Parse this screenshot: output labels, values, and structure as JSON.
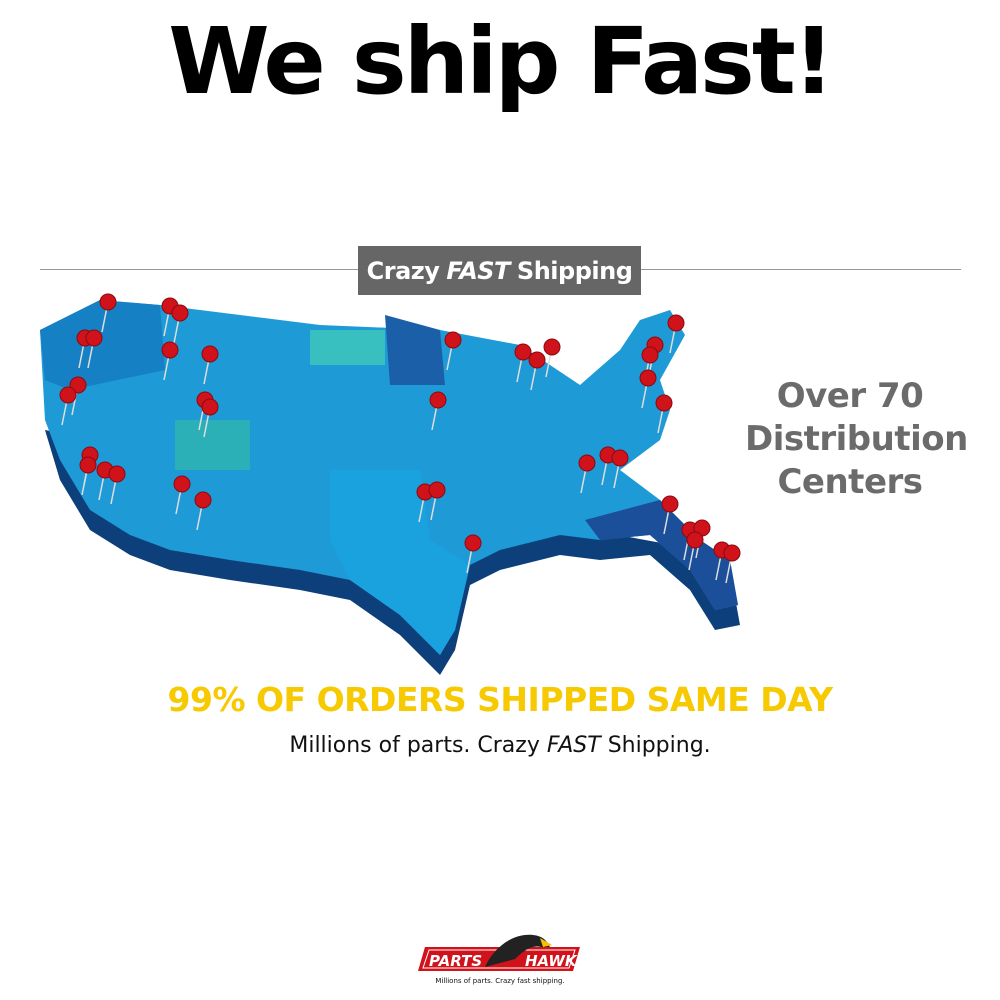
{
  "headline": "We ship Fast!",
  "banner": {
    "pre": "Crazy",
    "emph": "FAST",
    "post": "Shipping"
  },
  "stat": {
    "line1": "Over 70",
    "line2": "Distribution",
    "line3": "Centers"
  },
  "tagline": "99% OF ORDERS SHIPPED SAME DAY",
  "subline": {
    "pre": "Millions of parts. Crazy",
    "emph": "FAST",
    "post": "Shipping."
  },
  "logo": {
    "word1": "PARTS",
    "word2": "HAWK",
    "slogan": "Millions of parts. Crazy fast shipping."
  },
  "colors": {
    "map_blue": "#1e9ad6",
    "pin": "#d0121b",
    "tagline": "#f6c900",
    "badge": "#666666"
  }
}
